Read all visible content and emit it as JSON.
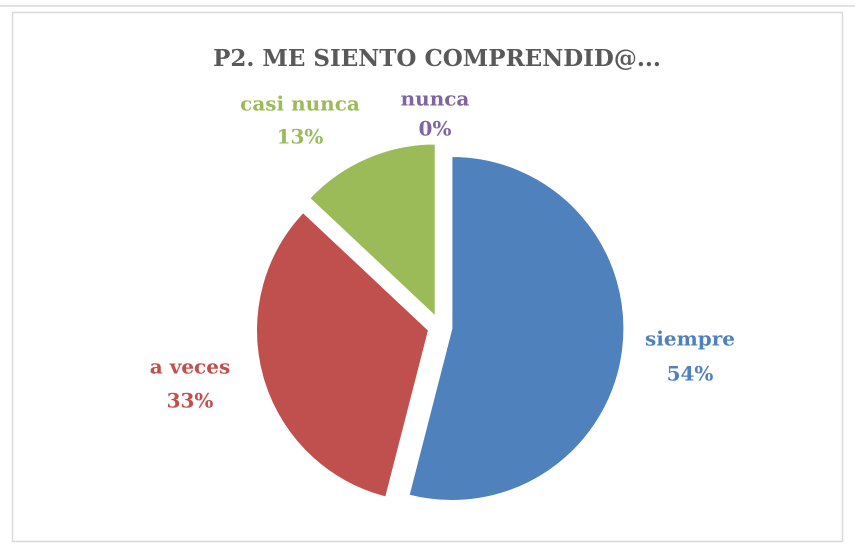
{
  "chart_data": {
    "type": "pie",
    "title": "P2. ME SIENTO COMPRENDID@...",
    "categories": [
      "siempre",
      "a veces",
      "casi nunca",
      "nunca"
    ],
    "values": [
      54,
      33,
      13,
      0
    ],
    "value_labels": [
      "54%",
      "33%",
      "13%",
      "0%"
    ],
    "colors": [
      "#4f81bd",
      "#c0504d",
      "#9bbb59",
      "#8064a2"
    ]
  }
}
